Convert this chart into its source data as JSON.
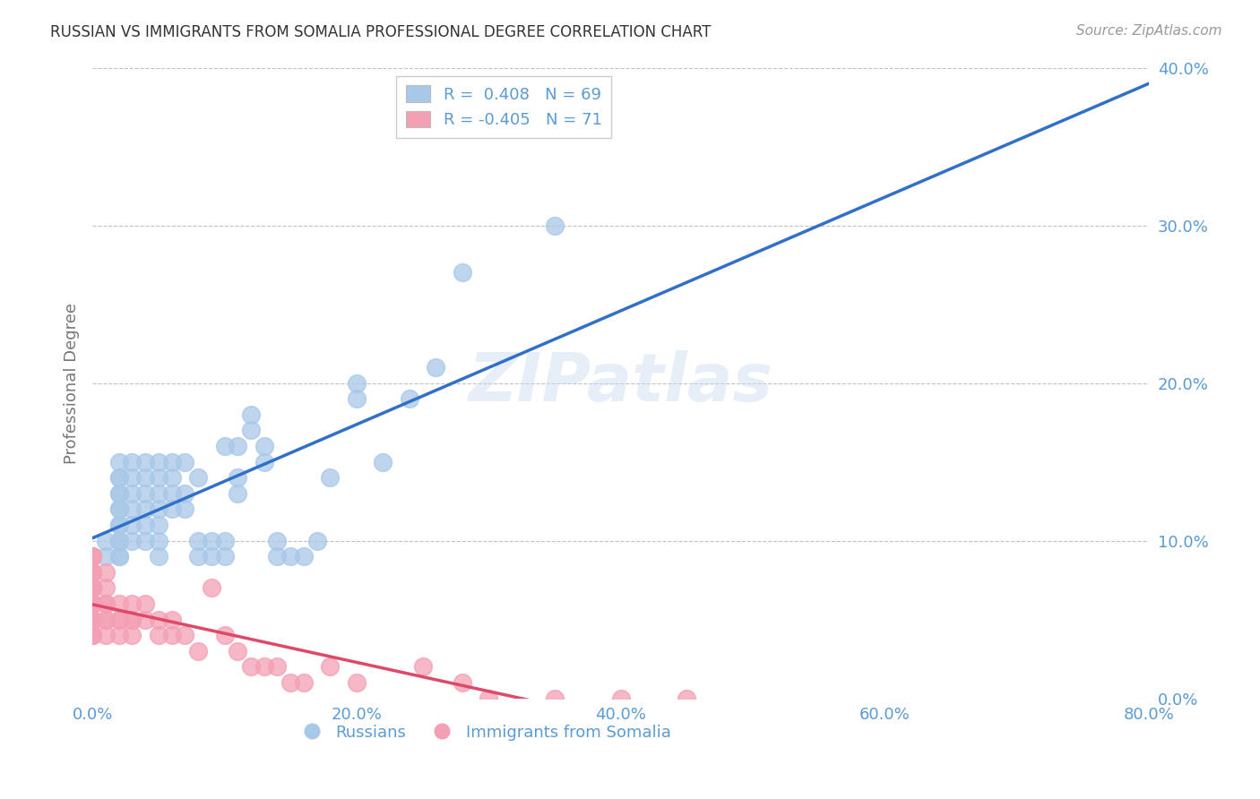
{
  "title": "RUSSIAN VS IMMIGRANTS FROM SOMALIA PROFESSIONAL DEGREE CORRELATION CHART",
  "source": "Source: ZipAtlas.com",
  "xlabel_ticks": [
    "0.0%",
    "20.0%",
    "40.0%",
    "60.0%",
    "80.0%"
  ],
  "xlabel_vals": [
    0,
    20,
    40,
    60,
    80
  ],
  "ylabel_ticks": [
    "0.0%",
    "10.0%",
    "20.0%",
    "30.0%",
    "40.0%"
  ],
  "ylabel_vals": [
    0,
    10,
    20,
    30,
    40
  ],
  "ylabel_label": "Professional Degree",
  "legend_russian": "R =  0.408   N = 69",
  "legend_somalia": "R = -0.405   N = 71",
  "watermark": "ZIPatlas",
  "blue_color": "#A8C8E8",
  "pink_color": "#F4A0B4",
  "trendline_blue": "#3070C8",
  "trendline_pink": "#E04868",
  "background": "#FFFFFF",
  "russian_x": [
    1,
    1,
    2,
    2,
    2,
    2,
    2,
    2,
    2,
    2,
    2,
    2,
    2,
    2,
    2,
    3,
    3,
    3,
    3,
    3,
    3,
    4,
    4,
    4,
    4,
    4,
    4,
    5,
    5,
    5,
    5,
    5,
    5,
    5,
    6,
    6,
    6,
    6,
    7,
    7,
    7,
    8,
    8,
    8,
    9,
    9,
    10,
    10,
    10,
    11,
    11,
    11,
    12,
    12,
    13,
    13,
    14,
    14,
    15,
    16,
    17,
    18,
    20,
    20,
    22,
    24,
    26,
    28,
    35
  ],
  "russian_y": [
    9,
    10,
    9,
    9,
    10,
    10,
    11,
    11,
    12,
    12,
    13,
    13,
    14,
    14,
    15,
    10,
    11,
    12,
    13,
    14,
    15,
    10,
    11,
    12,
    13,
    14,
    15,
    9,
    10,
    11,
    12,
    13,
    14,
    15,
    12,
    13,
    14,
    15,
    12,
    13,
    15,
    9,
    10,
    14,
    9,
    10,
    9,
    10,
    16,
    13,
    14,
    16,
    17,
    18,
    15,
    16,
    9,
    10,
    9,
    9,
    10,
    14,
    19,
    20,
    15,
    19,
    21,
    27,
    30
  ],
  "somalia_x": [
    0,
    0,
    0,
    0,
    0,
    0,
    0,
    0,
    0,
    0,
    0,
    0,
    0,
    0,
    0,
    0,
    0,
    0,
    0,
    0,
    0,
    0,
    0,
    0,
    0,
    0,
    0,
    0,
    0,
    0,
    0,
    0,
    1,
    1,
    1,
    1,
    1,
    1,
    1,
    2,
    2,
    2,
    2,
    3,
    3,
    3,
    3,
    4,
    4,
    5,
    5,
    6,
    6,
    7,
    8,
    9,
    10,
    11,
    12,
    13,
    14,
    15,
    16,
    18,
    20,
    25,
    28,
    30,
    35,
    40,
    45
  ],
  "somalia_y": [
    4,
    4,
    4,
    5,
    5,
    5,
    5,
    5,
    5,
    5,
    5,
    6,
    6,
    6,
    6,
    6,
    6,
    6,
    7,
    7,
    7,
    7,
    7,
    7,
    7,
    8,
    8,
    8,
    8,
    9,
    9,
    9,
    4,
    5,
    5,
    6,
    6,
    7,
    8,
    4,
    5,
    5,
    6,
    4,
    5,
    5,
    6,
    5,
    6,
    4,
    5,
    4,
    5,
    4,
    3,
    7,
    4,
    3,
    2,
    2,
    2,
    1,
    1,
    2,
    1,
    2,
    1,
    0,
    0,
    0,
    0
  ]
}
